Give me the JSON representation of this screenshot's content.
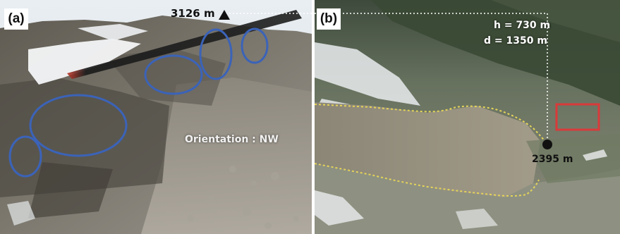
{
  "panels": {
    "a": {
      "label": "(a)"
    },
    "b": {
      "label": "(b)"
    }
  },
  "annotations": {
    "summit_elevation": "3126 m",
    "orientation": "Orientation : NW",
    "height": "h = 730 m",
    "distance": "d = 1350 m",
    "base_elevation": "2395 m"
  },
  "colors": {
    "ellipse_outline": "#3b63b8",
    "deposit_outline": "#e3d35a",
    "highlight_box": "#d93a3a",
    "dotted_guide": "#ffffff"
  },
  "icons": [
    "summit-triangle-icon",
    "base-point-icon"
  ]
}
